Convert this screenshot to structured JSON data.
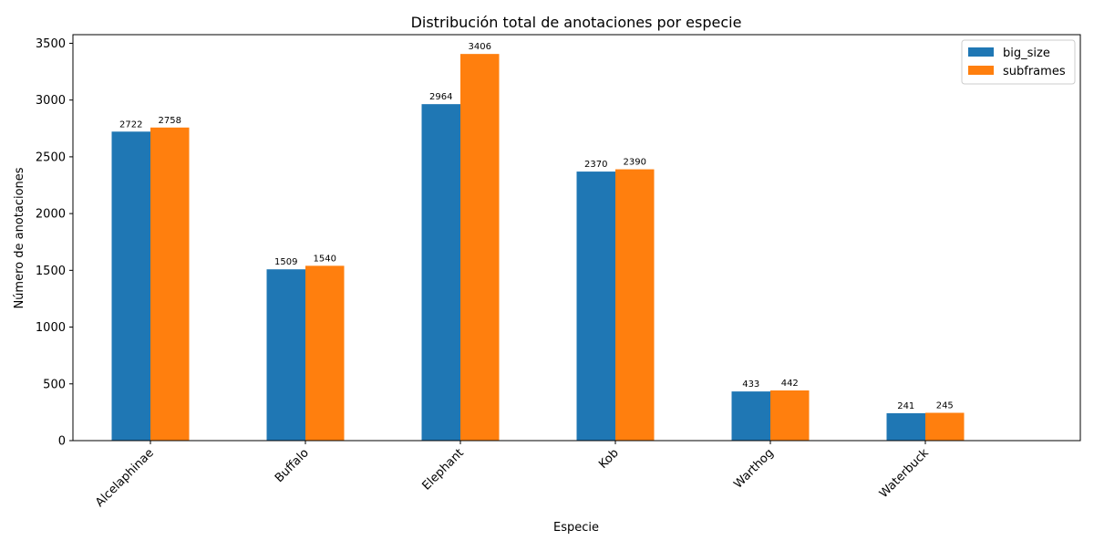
{
  "chart_data": {
    "type": "bar",
    "title": "Distribución total de anotaciones por especie",
    "xlabel": "Especie",
    "ylabel": "Número de anotaciones",
    "categories": [
      "Alcelaphinae",
      "Buffalo",
      "Elephant",
      "Kob",
      "Warthog",
      "Waterbuck"
    ],
    "series": [
      {
        "name": "big_size",
        "color": "#1f77b4",
        "values": [
          2722,
          1509,
          2964,
          2370,
          433,
          241
        ]
      },
      {
        "name": "subframes",
        "color": "#ff7f0e",
        "values": [
          2758,
          1540,
          3406,
          2390,
          442,
          245
        ]
      }
    ],
    "ylim": [
      0,
      3576
    ],
    "yticks": [
      0,
      500,
      1000,
      1500,
      2000,
      2500,
      3000,
      3500
    ],
    "grid": false,
    "legend_position": "top-right",
    "data_labels": true
  }
}
